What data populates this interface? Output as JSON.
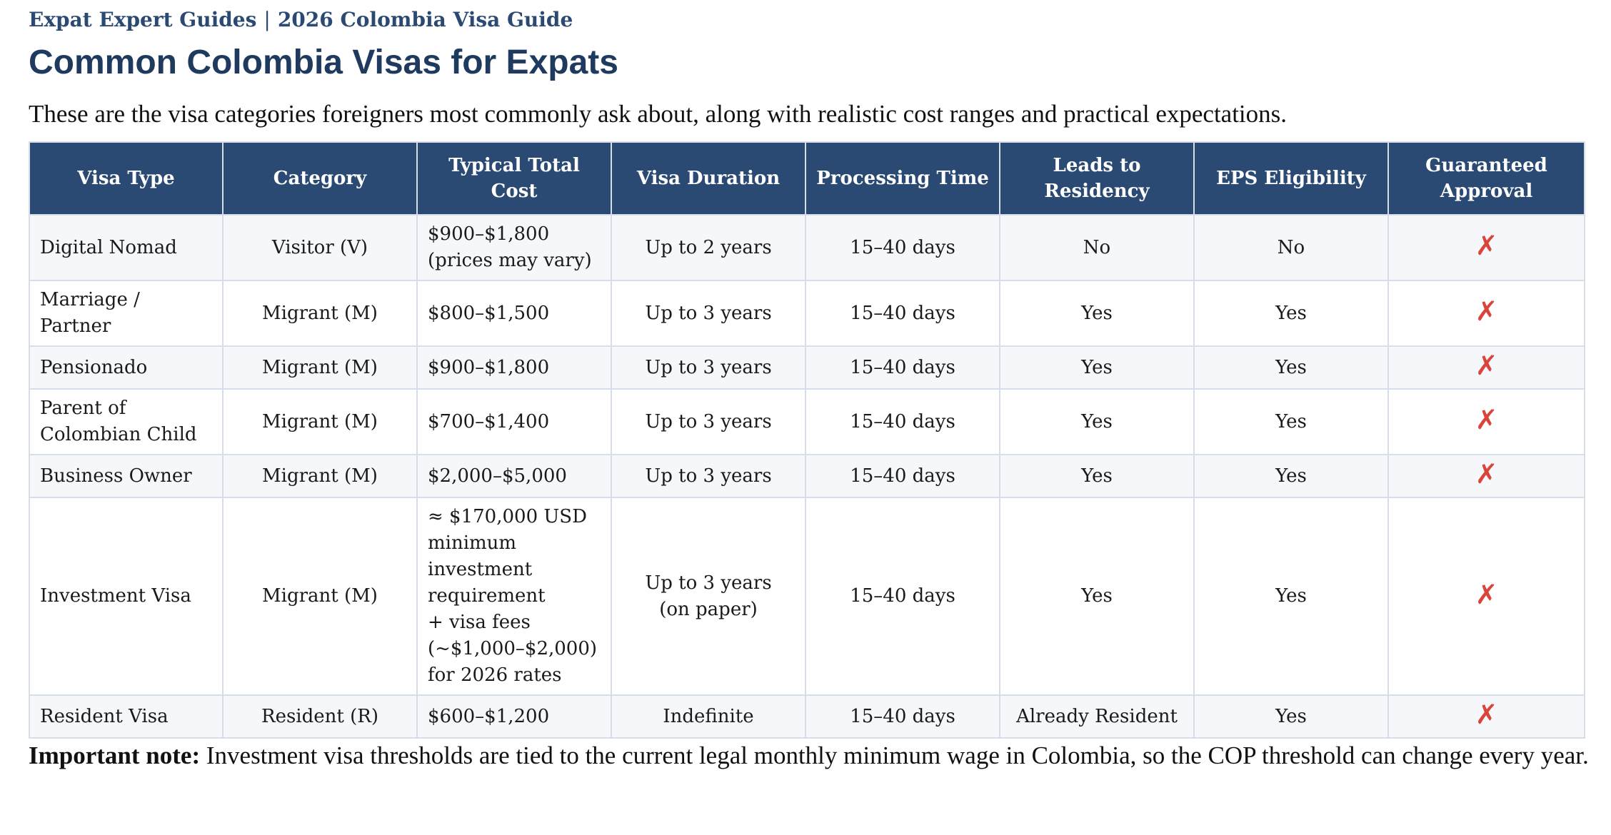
{
  "header": {
    "brand": "Expat Expert Guides",
    "separator": "|",
    "guide": "2026 Colombia Visa Guide",
    "title": "Common Colombia Visas for Expats",
    "intro": "These are the visa categories foreigners most commonly ask about, along with realistic cost ranges and practical expectations."
  },
  "table": {
    "columns": [
      "Visa Type",
      "Category",
      "Typical Total Cost",
      "Visa Duration",
      "Processing Time",
      "Leads to Residency",
      "EPS Eligibility",
      "Guaranteed Approval"
    ],
    "rows": [
      {
        "visa_type": "Digital Nomad",
        "category": "Visitor (V)",
        "cost": "$900–$1,800\n(prices may vary)",
        "duration": "Up to 2 years",
        "processing": "15–40 days",
        "residency": "No",
        "eps": "No",
        "guaranteed": "✗"
      },
      {
        "visa_type": "Marriage / Partner",
        "category": "Migrant (M)",
        "cost": "$800–$1,500",
        "duration": "Up to 3 years",
        "processing": "15–40 days",
        "residency": "Yes",
        "eps": "Yes",
        "guaranteed": "✗"
      },
      {
        "visa_type": "Pensionado",
        "category": "Migrant (M)",
        "cost": "$900–$1,800",
        "duration": "Up to 3 years",
        "processing": "15–40 days",
        "residency": "Yes",
        "eps": "Yes",
        "guaranteed": "✗"
      },
      {
        "visa_type": "Parent of\nColombian Child",
        "category": "Migrant (M)",
        "cost": "$700–$1,400",
        "duration": "Up to 3 years",
        "processing": "15–40 days",
        "residency": "Yes",
        "eps": "Yes",
        "guaranteed": "✗"
      },
      {
        "visa_type": "Business Owner",
        "category": "Migrant (M)",
        "cost": "$2,000–$5,000",
        "duration": "Up to 3 years",
        "processing": "15–40 days",
        "residency": "Yes",
        "eps": "Yes",
        "guaranteed": "✗"
      },
      {
        "visa_type": "Investment Visa",
        "category": "Migrant (M)",
        "cost": "≈ $170,000 USD\nminimum\ninvestment\nrequirement\n+ visa fees\n(~$1,000–$2,000)\nfor 2026 rates",
        "duration": "Up to 3 years\n(on paper)",
        "processing": "15–40 days",
        "residency": "Yes",
        "eps": "Yes",
        "guaranteed": "✗"
      },
      {
        "visa_type": "Resident Visa",
        "category": "Resident (R)",
        "cost": "$600–$1,200",
        "duration": "Indefinite",
        "processing": "15–40 days",
        "residency": "Already Resident",
        "eps": "Yes",
        "guaranteed": "✗"
      }
    ]
  },
  "note": {
    "label": "Important note:",
    "text": "Investment visa thresholds are tied to the current legal monthly minimum wage in Colombia, so the COP threshold can change every year."
  },
  "colors": {
    "header_bg": "#2b4a73",
    "brand": "#2b4a73",
    "title": "#1f3a5f",
    "x_mark": "#d9453b",
    "row_stripe": "#f5f7fb",
    "border": "#d6deea"
  },
  "icons": {
    "guaranteed_no": "x-mark-icon"
  }
}
